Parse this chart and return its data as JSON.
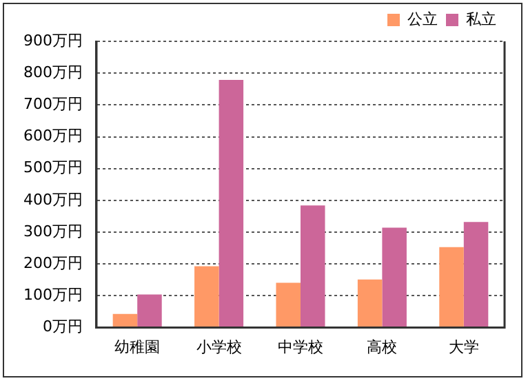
{
  "chart_data": {
    "type": "bar",
    "categories": [
      "幼稚園",
      "小学校",
      "中学校",
      "高校",
      "大学"
    ],
    "series": [
      {
        "name": "公立",
        "color": "#ff9966",
        "values": [
          43,
          193,
          141,
          151,
          253
        ]
      },
      {
        "name": "私立",
        "color": "#cc6699",
        "values": [
          104,
          779,
          384,
          314,
          332
        ]
      }
    ],
    "ylim": [
      0,
      900
    ],
    "yticks": [
      {
        "value": 0,
        "label": "0万円"
      },
      {
        "value": 100,
        "label": "100万円"
      },
      {
        "value": 200,
        "label": "200万円"
      },
      {
        "value": 300,
        "label": "300万円"
      },
      {
        "value": 400,
        "label": "400万円"
      },
      {
        "value": 500,
        "label": "500万円"
      },
      {
        "value": 600,
        "label": "600万円"
      },
      {
        "value": 700,
        "label": "700万円"
      },
      {
        "value": 800,
        "label": "800万円"
      },
      {
        "value": 900,
        "label": "900万円"
      }
    ],
    "grid": "y",
    "legend": "top right"
  }
}
